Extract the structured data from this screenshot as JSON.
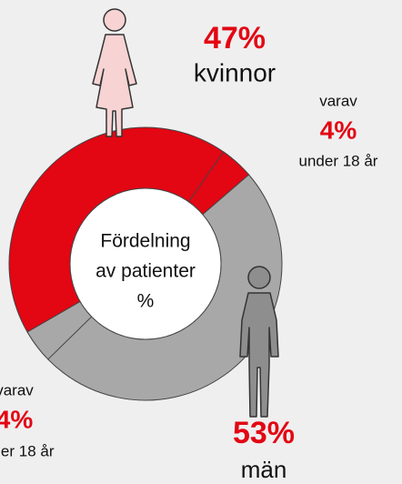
{
  "chart_data": {
    "type": "donut",
    "center_label": [
      "Fördelning",
      "av patienter",
      "%"
    ],
    "categories": [
      "kvinnor",
      "män"
    ],
    "values": [
      47,
      53
    ],
    "value_labels": [
      "47%",
      "53%"
    ],
    "colors": [
      "#e30613",
      "#a8a8a8"
    ],
    "sub": {
      "prefix": "varav",
      "suffix": "under 18 år",
      "values": [
        4,
        4
      ],
      "value_labels": [
        "4%",
        "4%"
      ]
    }
  }
}
